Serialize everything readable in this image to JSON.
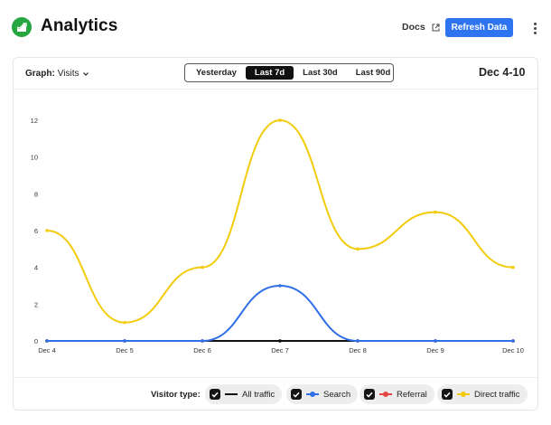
{
  "app": {
    "title": "Analytics",
    "docs_label": "Docs",
    "refresh_label": "Refresh Data",
    "brand_color": "#27a53e",
    "accent_color": "#2e74f0"
  },
  "toolbar": {
    "graph_label": "Graph:",
    "graph_value": "Visits",
    "ranges": [
      "Yesterday",
      "Last 7d",
      "Last 30d",
      "Last 90d"
    ],
    "active_range": "Last 7d",
    "date_range": "Dec 4-10"
  },
  "legend": {
    "title": "Visitor type:"
  },
  "chart_data": {
    "type": "line",
    "categories": [
      "Dec 4",
      "Dec 5",
      "Dec 6",
      "Dec 7",
      "Dec 8",
      "Dec 9",
      "Dec 10"
    ],
    "ylim": [
      0,
      12
    ],
    "yticks": [
      0,
      2,
      4,
      6,
      8,
      10,
      12
    ],
    "grid": false,
    "legend_position": "bottom",
    "series": [
      {
        "name": "All traffic",
        "color": "#111111",
        "values": [
          0,
          0,
          0,
          0,
          0,
          0,
          0
        ]
      },
      {
        "name": "Search",
        "color": "#2f6fe8",
        "values": [
          0,
          0,
          0,
          3,
          0,
          0,
          0
        ]
      },
      {
        "name": "Referral",
        "color": "#e64545",
        "values": [
          0,
          0,
          0,
          0,
          0,
          0,
          0
        ]
      },
      {
        "name": "Direct traffic",
        "color": "#f2cc0c",
        "values": [
          6,
          1,
          4,
          12,
          5,
          7,
          4
        ]
      }
    ]
  }
}
